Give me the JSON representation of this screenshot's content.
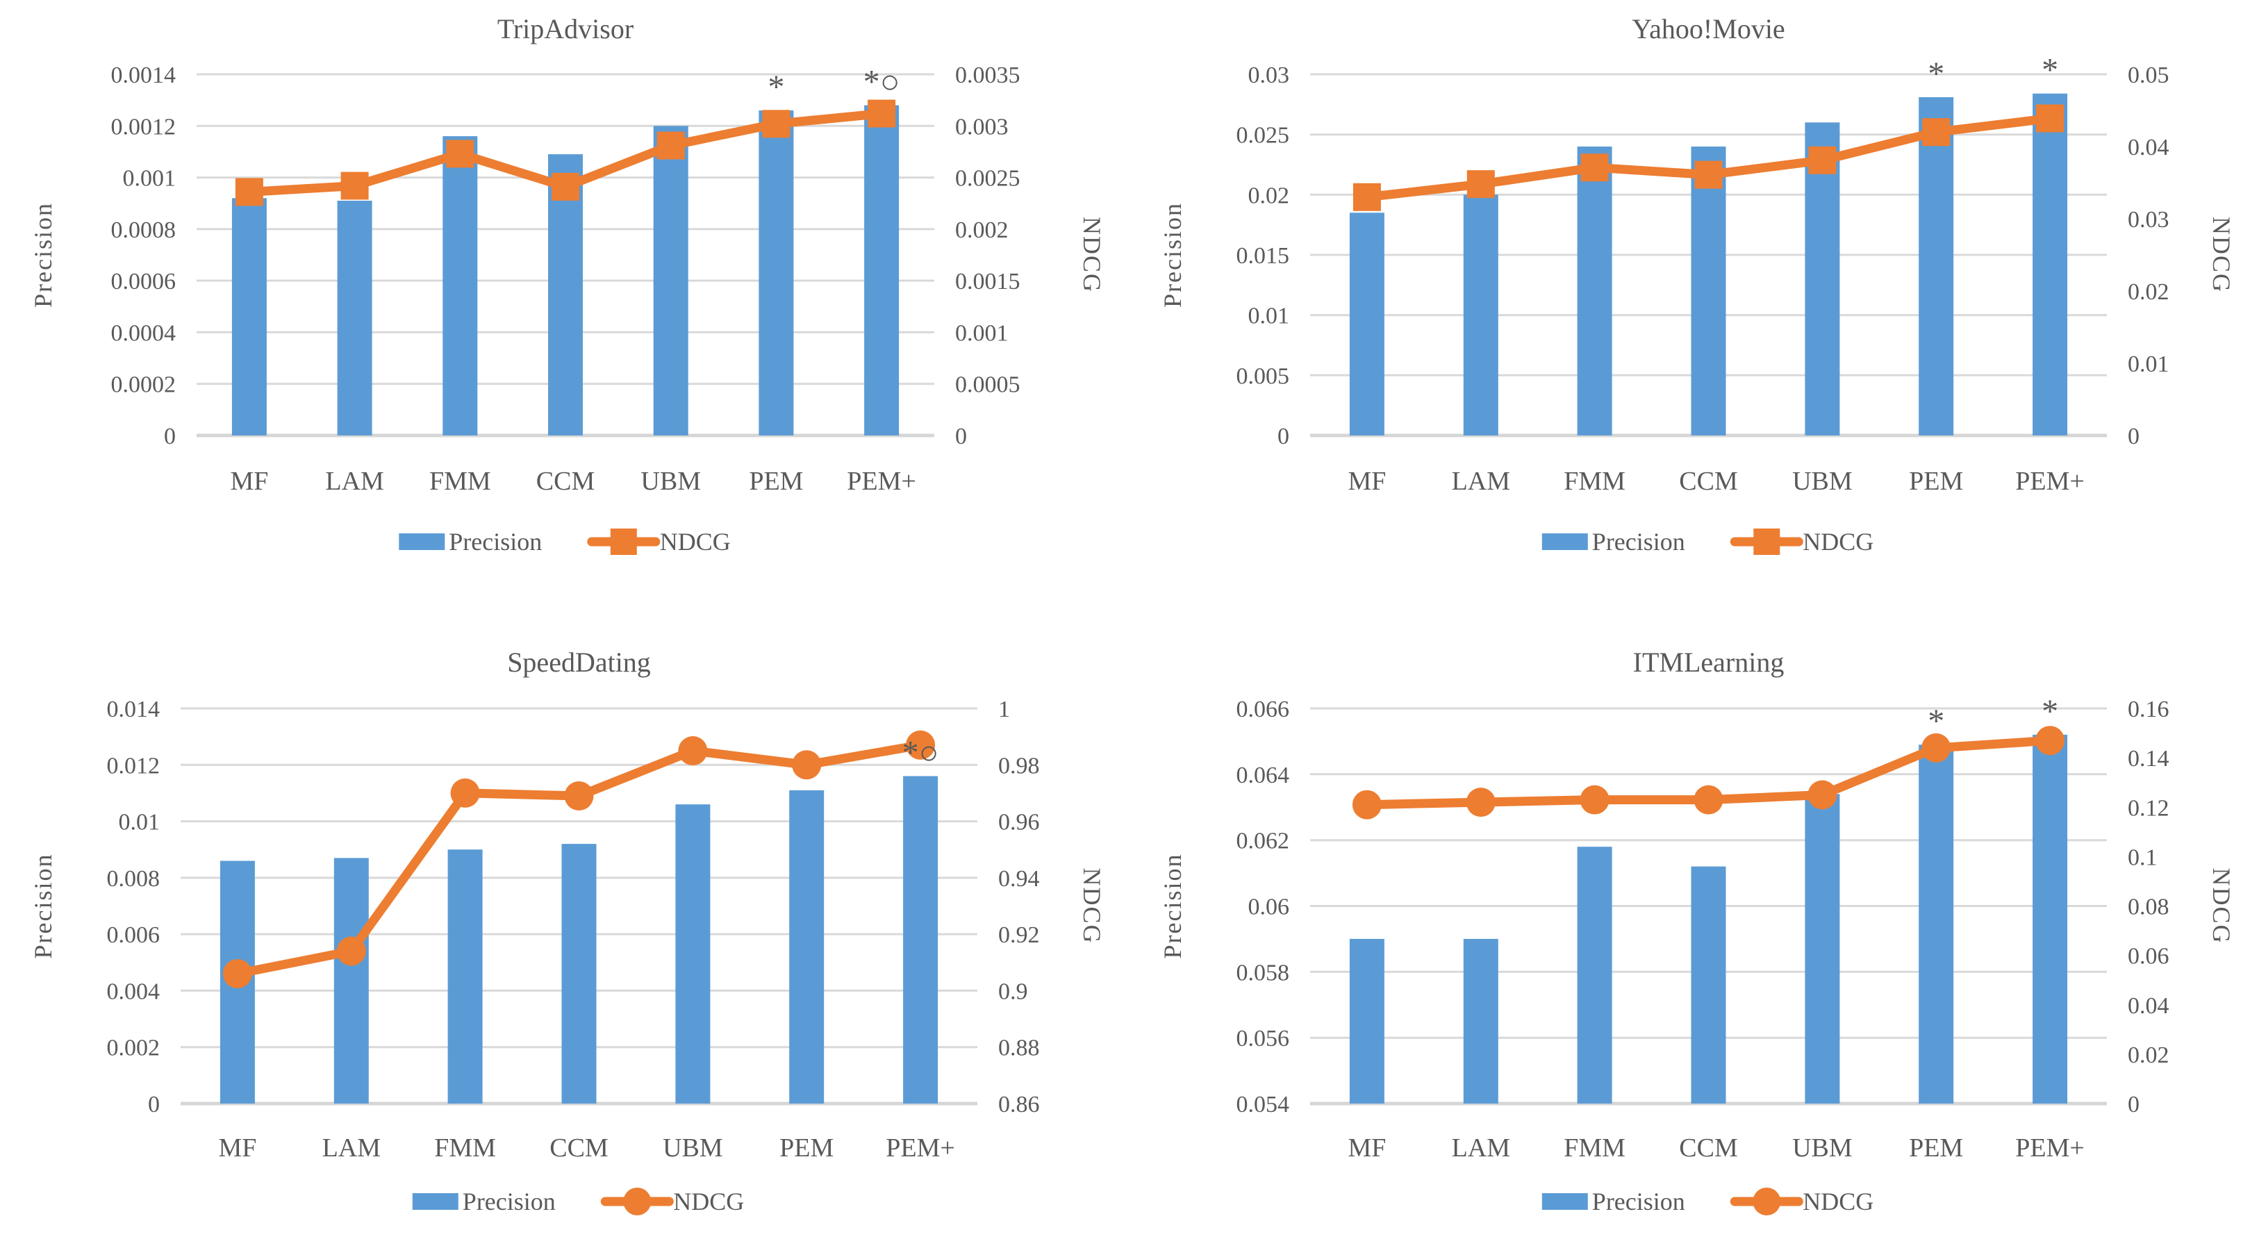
{
  "colors": {
    "precision_bar": "#5B9BD5",
    "ndcg_line": "#ED7D31",
    "gridline": "#D9D9D9",
    "axis_line": "#D6D6D6",
    "text": "#595959",
    "title_text": "#4a4a4a",
    "annotation_text": "#404040"
  },
  "legend": {
    "precision_label": "Precision",
    "ndcg_label": "NDCG"
  },
  "chart_data": [
    {
      "type": "bar+line",
      "title": "TripAdvisor",
      "position": "top-left",
      "grid": true,
      "legend_position": "bottom",
      "categories": [
        "MF",
        "LAM",
        "FMM",
        "CCM",
        "UBM",
        "PEM",
        "PEM+"
      ],
      "left_axis": {
        "label": "Precision",
        "min": 0,
        "max": 0.0014,
        "step": 0.0002,
        "ticks": [
          "0.0014",
          "0.0012",
          "0.001",
          "0.0008",
          "0.0006",
          "0.0004",
          "0.0002",
          "0"
        ]
      },
      "right_axis": {
        "label": "NDCG",
        "min": 0,
        "max": 0.0035,
        "step": 0.0005,
        "ticks": [
          "0.0035",
          "0.003",
          "0.0025",
          "0.002",
          "0.0015",
          "0.001",
          "0.0005",
          "0"
        ]
      },
      "series": [
        {
          "name": "Precision",
          "type": "bar",
          "axis": "left",
          "values": [
            0.00092,
            0.00091,
            0.00116,
            0.00109,
            0.0012,
            0.00126,
            0.00128
          ]
        },
        {
          "name": "NDCG",
          "type": "line",
          "axis": "right",
          "marker": "square",
          "values": [
            0.00236,
            0.00242,
            0.00273,
            0.00241,
            0.00281,
            0.00302,
            0.00312
          ]
        }
      ],
      "annotations": [
        {
          "category": "PEM",
          "text": "*"
        },
        {
          "category": "PEM+",
          "text": "*○"
        }
      ]
    },
    {
      "type": "bar+line",
      "title": "Yahoo!Movie",
      "position": "top-right",
      "grid": true,
      "legend_position": "bottom",
      "categories": [
        "MF",
        "LAM",
        "FMM",
        "CCM",
        "UBM",
        "PEM",
        "PEM+"
      ],
      "left_axis": {
        "label": "Precision",
        "min": 0,
        "max": 0.03,
        "step": 0.005,
        "ticks": [
          "0.03",
          "0.025",
          "0.02",
          "0.015",
          "0.01",
          "0.005",
          "0"
        ]
      },
      "right_axis": {
        "label": "NDCG",
        "min": 0,
        "max": 0.05,
        "step": 0.01,
        "ticks": [
          "0.05",
          "0.04",
          "0.03",
          "0.02",
          "0.01",
          "0"
        ]
      },
      "series": [
        {
          "name": "Precision",
          "type": "bar",
          "axis": "left",
          "values": [
            0.0185,
            0.02,
            0.024,
            0.024,
            0.026,
            0.0281,
            0.0284
          ]
        },
        {
          "name": "NDCG",
          "type": "line",
          "axis": "right",
          "marker": "square",
          "values": [
            0.033,
            0.0348,
            0.0371,
            0.0361,
            0.0381,
            0.042,
            0.0439
          ]
        }
      ],
      "annotations": [
        {
          "category": "PEM",
          "text": "*"
        },
        {
          "category": "PEM+",
          "text": "*"
        }
      ]
    },
    {
      "type": "bar+line",
      "title": "SpeedDating",
      "position": "bottom-left",
      "grid": true,
      "legend_position": "bottom",
      "categories": [
        "MF",
        "LAM",
        "FMM",
        "CCM",
        "UBM",
        "PEM",
        "PEM+"
      ],
      "left_axis": {
        "label": "Precision",
        "min": 0,
        "max": 0.014,
        "step": 0.002,
        "ticks": [
          "0.014",
          "0.012",
          "0.01",
          "0.008",
          "0.006",
          "0.004",
          "0.002",
          "0"
        ]
      },
      "right_axis": {
        "label": "NDCG",
        "min": 0.86,
        "max": 1,
        "step": 0.02,
        "ticks": [
          "1",
          "0.98",
          "0.96",
          "0.94",
          "0.92",
          "0.9",
          "0.88",
          "0.86"
        ]
      },
      "series": [
        {
          "name": "Precision",
          "type": "bar",
          "axis": "left",
          "values": [
            0.0086,
            0.0087,
            0.009,
            0.0092,
            0.0106,
            0.0111,
            0.0116
          ]
        },
        {
          "name": "NDCG",
          "type": "line",
          "axis": "right",
          "marker": "circle",
          "values": [
            0.906,
            0.914,
            0.97,
            0.969,
            0.985,
            0.98,
            0.987
          ]
        }
      ],
      "annotations": [
        {
          "category": "PEM+",
          "text": "*○"
        }
      ]
    },
    {
      "type": "bar+line",
      "title": "ITMLearning",
      "position": "bottom-right",
      "grid": true,
      "legend_position": "bottom",
      "categories": [
        "MF",
        "LAM",
        "FMM",
        "CCM",
        "UBM",
        "PEM",
        "PEM+"
      ],
      "left_axis": {
        "label": "Precision",
        "min": 0.054,
        "max": 0.066,
        "step": 0.002,
        "ticks": [
          "0.066",
          "0.064",
          "0.062",
          "0.06",
          "0.058",
          "0.056",
          "0.054"
        ]
      },
      "right_axis": {
        "label": "NDCG",
        "min": 0,
        "max": 0.16,
        "step": 0.02,
        "ticks": [
          "0.16",
          "0.14",
          "0.12",
          "0.1",
          "0.08",
          "0.06",
          "0.04",
          "0.02",
          "0"
        ]
      },
      "series": [
        {
          "name": "Precision",
          "type": "bar",
          "axis": "left",
          "values": [
            0.059,
            0.059,
            0.0618,
            0.0612,
            0.0634,
            0.0649,
            0.0652
          ]
        },
        {
          "name": "NDCG",
          "type": "line",
          "axis": "right",
          "marker": "circle",
          "values": [
            0.121,
            0.122,
            0.123,
            0.123,
            0.125,
            0.144,
            0.147
          ]
        }
      ],
      "annotations": [
        {
          "category": "PEM",
          "text": "*"
        },
        {
          "category": "PEM+",
          "text": "*"
        }
      ]
    }
  ]
}
